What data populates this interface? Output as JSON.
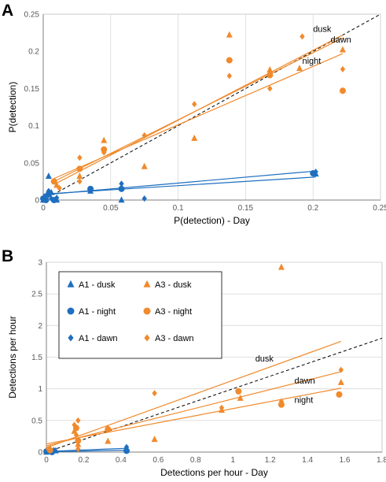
{
  "panels": {
    "A": {
      "letter": "A"
    },
    "B": {
      "letter": "B"
    }
  },
  "colors": {
    "A1": "#1f6fbf",
    "A3": "#f08a2c",
    "identity": "#000000",
    "grid": "#d9d9d9"
  },
  "chart_data": [
    {
      "panel": "A",
      "type": "scatter",
      "xlabel": "P(detection) - Day",
      "ylabel": "P(detection)",
      "xlim": [
        0,
        0.25
      ],
      "ylim": [
        0,
        0.25
      ],
      "xticks": [
        "0",
        "0.05",
        "0.1",
        "0.15",
        "0.2",
        "0.25"
      ],
      "yticks": [
        "0",
        "0.05",
        "0.1",
        "0.15",
        "0.2",
        "0.25"
      ],
      "xtick_values": [
        0,
        0.05,
        0.1,
        0.15,
        0.2,
        0.25
      ],
      "ytick_values": [
        0,
        0.05,
        0.1,
        0.15,
        0.2,
        0.25
      ],
      "grid": "vertical",
      "identity_line": true,
      "series": [
        {
          "group": "A1",
          "period": "dusk",
          "marker": "triangle",
          "points": [
            [
              0,
              0
            ],
            [
              0.002,
              0.003
            ],
            [
              0.004,
              0.032
            ],
            [
              0.006,
              0.01
            ],
            [
              0.01,
              0
            ],
            [
              0.035,
              0.012
            ],
            [
              0.058,
              0
            ],
            [
              0.202,
              0.035
            ]
          ]
        },
        {
          "group": "A1",
          "period": "night",
          "marker": "circle",
          "points": [
            [
              0,
              0.002
            ],
            [
              0.002,
              0
            ],
            [
              0.004,
              0.008
            ],
            [
              0.008,
              0
            ],
            [
              0.035,
              0.015
            ],
            [
              0.058,
              0.015
            ],
            [
              0.2,
              0.036
            ]
          ]
        },
        {
          "group": "A1",
          "period": "dawn",
          "marker": "diamond",
          "points": [
            [
              0,
              0
            ],
            [
              0.002,
              0.005
            ],
            [
              0.004,
              0.012
            ],
            [
              0.006,
              0.002
            ],
            [
              0.01,
              0.003
            ],
            [
              0.058,
              0.022
            ],
            [
              0.075,
              0.002
            ],
            [
              0.202,
              0.038
            ]
          ]
        },
        {
          "group": "A3",
          "period": "dusk",
          "marker": "triangle",
          "points": [
            [
              0.01,
              0.02
            ],
            [
              0.027,
              0.032
            ],
            [
              0.045,
              0.08
            ],
            [
              0.075,
              0.045
            ],
            [
              0.112,
              0.083
            ],
            [
              0.138,
              0.222
            ],
            [
              0.168,
              0.175
            ],
            [
              0.19,
              0.177
            ],
            [
              0.222,
              0.202
            ]
          ]
        },
        {
          "group": "A3",
          "period": "night",
          "marker": "circle",
          "points": [
            [
              0.008,
              0.025
            ],
            [
              0.027,
              0.042
            ],
            [
              0.045,
              0.068
            ],
            [
              0.138,
              0.188
            ],
            [
              0.168,
              0.168
            ],
            [
              0.222,
              0.147
            ]
          ]
        },
        {
          "group": "A3",
          "period": "dawn",
          "marker": "diamond",
          "points": [
            [
              0.012,
              0.016
            ],
            [
              0.027,
              0.057
            ],
            [
              0.027,
              0.025
            ],
            [
              0.045,
              0.064
            ],
            [
              0.075,
              0.087
            ],
            [
              0.112,
              0.129
            ],
            [
              0.138,
              0.167
            ],
            [
              0.168,
              0.15
            ],
            [
              0.192,
              0.22
            ],
            [
              0.222,
              0.176
            ]
          ]
        }
      ],
      "trendlines": [
        {
          "group": "A1",
          "from": [
            0,
            0.007
          ],
          "to": [
            0.202,
            0.039
          ]
        },
        {
          "group": "A1",
          "from": [
            0,
            0.008
          ],
          "to": [
            0.202,
            0.031
          ]
        },
        {
          "group": "A3",
          "label": "dusk",
          "from": [
            0.008,
            0.021
          ],
          "to": [
            0.222,
            0.222
          ]
        },
        {
          "group": "A3",
          "label": "dawn",
          "from": [
            0.008,
            0.025
          ],
          "to": [
            0.222,
            0.218
          ]
        },
        {
          "group": "A3",
          "label": "night",
          "from": [
            0.008,
            0.029
          ],
          "to": [
            0.222,
            0.197
          ]
        }
      ],
      "line_labels": [
        {
          "text": "dusk",
          "at": [
            0.2,
            0.226
          ]
        },
        {
          "text": "dawn",
          "at": [
            0.213,
            0.212
          ]
        },
        {
          "text": "night",
          "at": [
            0.192,
            0.183
          ]
        }
      ]
    },
    {
      "panel": "B",
      "type": "scatter",
      "xlabel": "Detections per hour - Day",
      "ylabel": "Detections per hour",
      "xlim": [
        0,
        1.8
      ],
      "ylim": [
        0,
        3
      ],
      "xticks": [
        "0",
        "0.2",
        "0.4",
        "0.6",
        "0.8",
        "1",
        "1.2",
        "1.4",
        "1.6",
        "1.8"
      ],
      "yticks": [
        "0",
        "0.5",
        "1",
        "1.5",
        "2",
        "2.5",
        "3"
      ],
      "xtick_values": [
        0,
        0.2,
        0.4,
        0.6,
        0.8,
        1,
        1.2,
        1.4,
        1.6,
        1.8
      ],
      "ytick_values": [
        0,
        0.5,
        1,
        1.5,
        2,
        2.5,
        3
      ],
      "grid": "horizontal",
      "identity_line": true,
      "legend": {
        "position": "top-left",
        "entries": [
          {
            "label": "A1 - dusk",
            "group": "A1",
            "marker": "triangle"
          },
          {
            "label": "A3 - dusk",
            "group": "A3",
            "marker": "triangle"
          },
          {
            "label": "A1 - night",
            "group": "A1",
            "marker": "circle"
          },
          {
            "label": "A3 - night",
            "group": "A3",
            "marker": "circle"
          },
          {
            "label": "A1 - dawn",
            "group": "A1",
            "marker": "diamond"
          },
          {
            "label": "A3 - dawn",
            "group": "A3",
            "marker": "diamond"
          }
        ]
      },
      "series": [
        {
          "group": "A1",
          "period": "dusk",
          "marker": "triangle",
          "points": [
            [
              0,
              0
            ],
            [
              0.02,
              0.01
            ],
            [
              0.05,
              0.02
            ],
            [
              0.43,
              0.05
            ]
          ]
        },
        {
          "group": "A1",
          "period": "night",
          "marker": "circle",
          "points": [
            [
              0,
              0.01
            ],
            [
              0.03,
              0
            ],
            [
              0.43,
              0.02
            ]
          ]
        },
        {
          "group": "A1",
          "period": "dawn",
          "marker": "diamond",
          "points": [
            [
              0,
              0.02
            ],
            [
              0.04,
              0.03
            ],
            [
              0.43,
              0.08
            ]
          ]
        },
        {
          "group": "A3",
          "period": "dusk",
          "marker": "triangle",
          "points": [
            [
              0.02,
              0.06
            ],
            [
              0.15,
              0.33
            ],
            [
              0.17,
              0.12
            ],
            [
              0.33,
              0.17
            ],
            [
              0.58,
              0.2
            ],
            [
              0.94,
              0.66
            ],
            [
              1.04,
              0.85
            ],
            [
              1.26,
              2.92
            ],
            [
              1.58,
              1.1
            ]
          ]
        },
        {
          "group": "A3",
          "period": "night",
          "marker": "circle",
          "points": [
            [
              0.02,
              0.03
            ],
            [
              0.16,
              0.38
            ],
            [
              0.17,
              0.18
            ],
            [
              0.33,
              0.36
            ],
            [
              1.03,
              0.96
            ],
            [
              1.26,
              0.75
            ],
            [
              1.57,
              0.91
            ]
          ]
        },
        {
          "group": "A3",
          "period": "dawn",
          "marker": "diamond",
          "points": [
            [
              0.01,
              0.05
            ],
            [
              0.15,
              0.43
            ],
            [
              0.16,
              0.27
            ],
            [
              0.17,
              0.5
            ],
            [
              0.17,
              0.05
            ],
            [
              0.33,
              0.38
            ],
            [
              0.58,
              0.93
            ],
            [
              0.94,
              0.7
            ],
            [
              1.26,
              0.8
            ],
            [
              1.58,
              1.3
            ]
          ]
        }
      ],
      "trendlines": [
        {
          "group": "A1",
          "from": [
            0,
            0.01
          ],
          "to": [
            0.43,
            0.06
          ]
        },
        {
          "group": "A1",
          "from": [
            0,
            0.005
          ],
          "to": [
            0.43,
            0.03
          ]
        },
        {
          "group": "A3",
          "label": "dusk",
          "from": [
            0,
            0.07
          ],
          "to": [
            1.58,
            1.75
          ]
        },
        {
          "group": "A3",
          "label": "dawn",
          "from": [
            0,
            0.1
          ],
          "to": [
            1.58,
            1.27
          ]
        },
        {
          "group": "A3",
          "label": "night",
          "from": [
            0,
            0.13
          ],
          "to": [
            1.58,
            1.01
          ]
        }
      ],
      "line_labels": [
        {
          "text": "dusk",
          "at": [
            1.12,
            1.43
          ]
        },
        {
          "text": "dawn",
          "at": [
            1.33,
            1.08
          ]
        },
        {
          "text": "night",
          "at": [
            1.33,
            0.78
          ]
        }
      ]
    }
  ]
}
